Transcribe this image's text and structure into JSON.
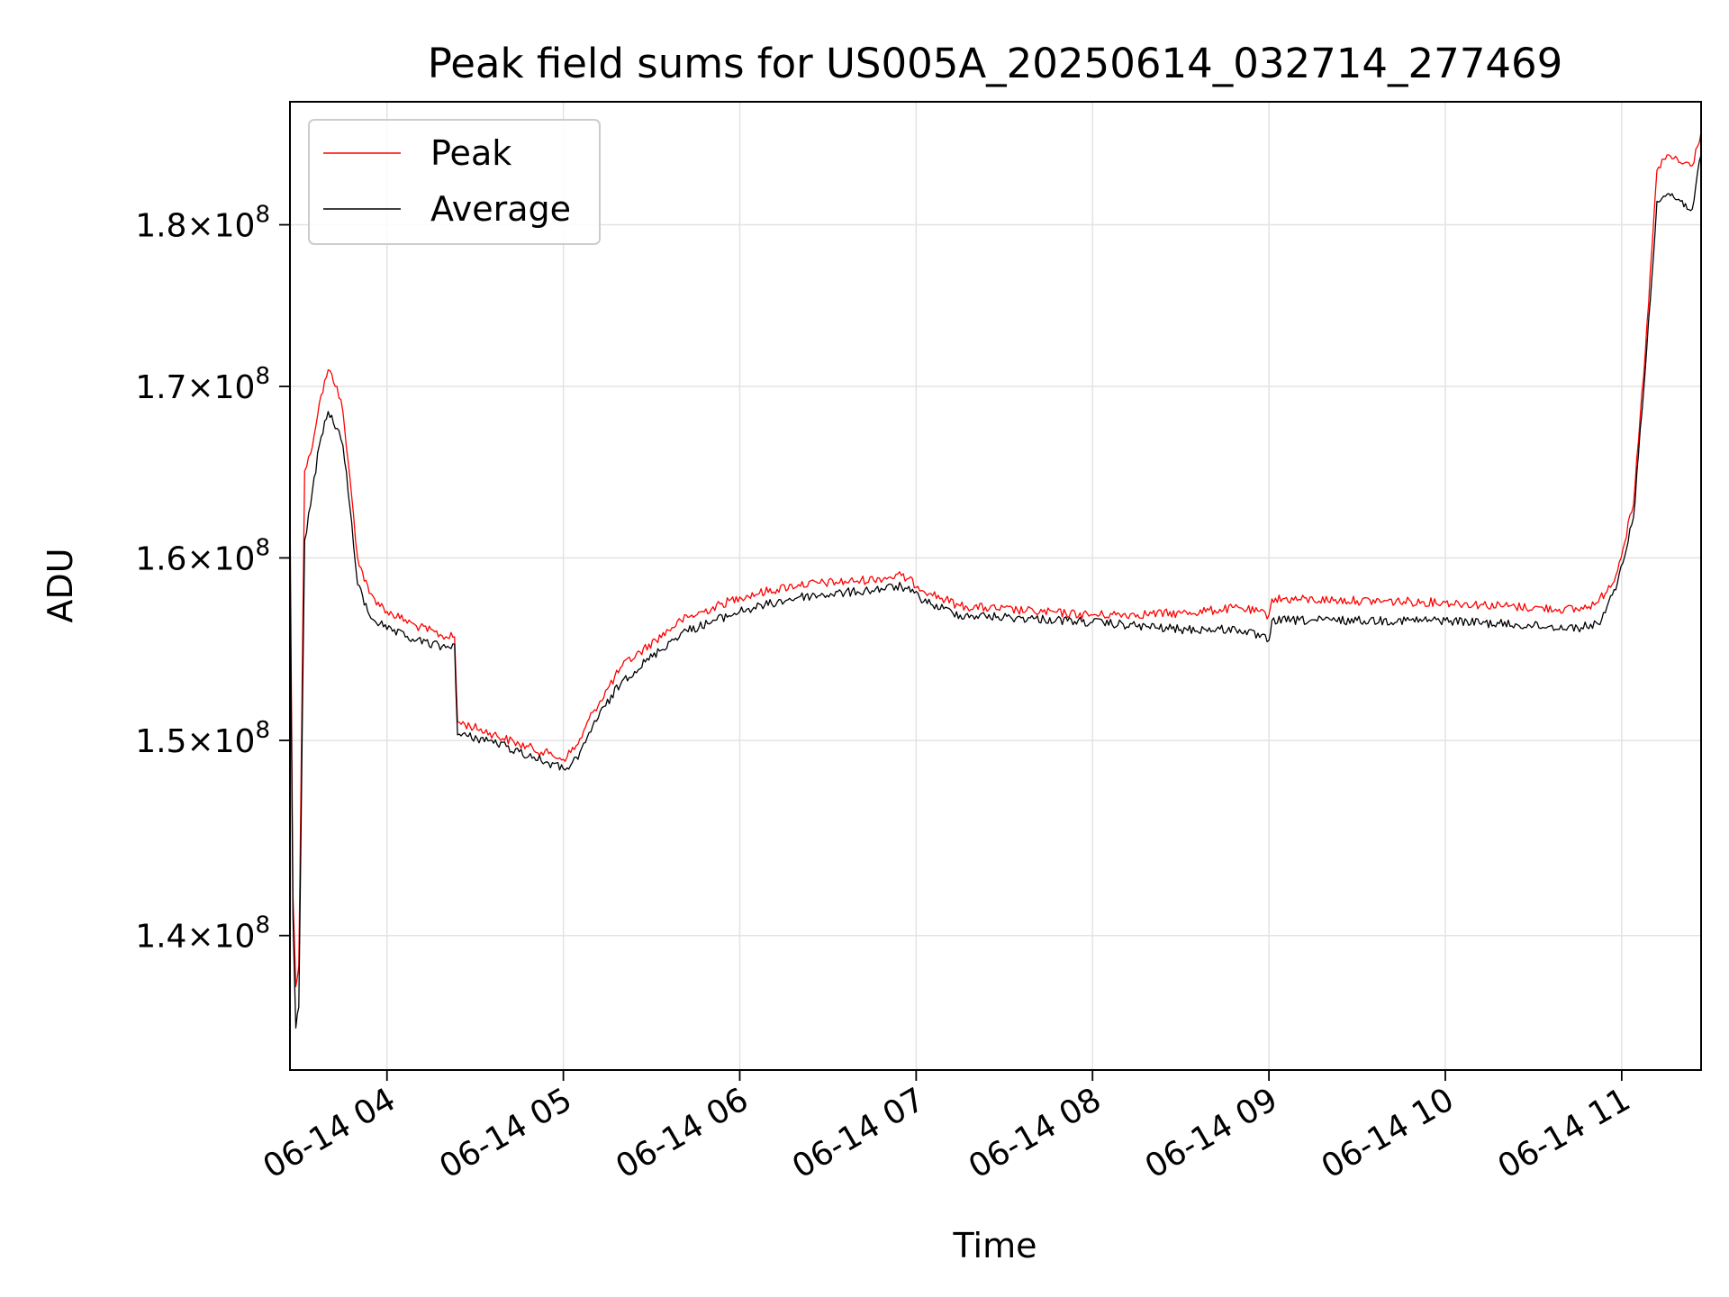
{
  "chart_data": {
    "type": "line",
    "title": "Peak field sums for US005A_20250614_032714_277469",
    "xlabel": "Time",
    "ylabel": "ADU",
    "yscale": "log",
    "grid": true,
    "legend": "top-left",
    "xlim": [
      "06-14 03:27",
      "06-14 11:27"
    ],
    "ylim": [
      133500000,
      188000000
    ],
    "x_ticks": [
      {
        "value": "06-14 04:00",
        "label": "06-14 04"
      },
      {
        "value": "06-14 05:00",
        "label": "06-14 05"
      },
      {
        "value": "06-14 06:00",
        "label": "06-14 06"
      },
      {
        "value": "06-14 07:00",
        "label": "06-14 07"
      },
      {
        "value": "06-14 08:00",
        "label": "06-14 08"
      },
      {
        "value": "06-14 09:00",
        "label": "06-14 09"
      },
      {
        "value": "06-14 10:00",
        "label": "06-14 10"
      },
      {
        "value": "06-14 11:00",
        "label": "06-14 11"
      }
    ],
    "y_ticks": [
      {
        "value": 140000000,
        "mantissa": "1.4",
        "exponent": "8"
      },
      {
        "value": 150000000,
        "mantissa": "1.5",
        "exponent": "8"
      },
      {
        "value": 160000000,
        "mantissa": "1.6",
        "exponent": "8"
      },
      {
        "value": 170000000,
        "mantissa": "1.7",
        "exponent": "8"
      },
      {
        "value": 180000000,
        "mantissa": "1.8",
        "exponent": "8"
      }
    ],
    "series": [
      {
        "name": "Peak",
        "color": "#ff0000",
        "x": [
          "06-14 03:27",
          "06-14 03:28",
          "06-14 03:29",
          "06-14 03:30",
          "06-14 03:32",
          "06-14 03:34",
          "06-14 03:37",
          "06-14 03:40",
          "06-14 03:43",
          "06-14 03:45",
          "06-14 03:48",
          "06-14 03:50",
          "06-14 03:54",
          "06-14 04:00",
          "06-14 04:10",
          "06-14 04:20",
          "06-14 04:23",
          "06-14 04:24",
          "06-14 04:35",
          "06-14 04:45",
          "06-14 04:55",
          "06-14 05:00",
          "06-14 05:05",
          "06-14 05:10",
          "06-14 05:20",
          "06-14 05:40",
          "06-14 06:00",
          "06-14 06:20",
          "06-14 06:40",
          "06-14 06:55",
          "06-14 07:05",
          "06-14 07:15",
          "06-14 07:40",
          "06-14 08:00",
          "06-14 08:30",
          "06-14 08:50",
          "06-14 09:00",
          "06-14 09:01",
          "06-14 09:30",
          "06-14 10:00",
          "06-14 10:30",
          "06-14 10:45",
          "06-14 10:52",
          "06-14 10:58",
          "06-14 11:04",
          "06-14 11:08",
          "06-14 11:12",
          "06-14 11:16",
          "06-14 11:20",
          "06-14 11:24",
          "06-14 11:27"
        ],
        "y": [
          163500000,
          142000000,
          137500000,
          138500000,
          165000000,
          166000000,
          169000000,
          171000000,
          170000000,
          168500000,
          163500000,
          160000000,
          158000000,
          157000000,
          156200000,
          155600000,
          155600000,
          151000000,
          150400000,
          149800000,
          149300000,
          149000000,
          149800000,
          151500000,
          154000000,
          156500000,
          157800000,
          158500000,
          158700000,
          159000000,
          158000000,
          157300000,
          157000000,
          156800000,
          156900000,
          157200000,
          156800000,
          157700000,
          157600000,
          157500000,
          157200000,
          157100000,
          157500000,
          159000000,
          163000000,
          172000000,
          183500000,
          184500000,
          184000000,
          183800000,
          186000000
        ]
      },
      {
        "name": "Average",
        "color": "#000000",
        "x": [
          "06-14 03:27",
          "06-14 03:28",
          "06-14 03:29",
          "06-14 03:30",
          "06-14 03:32",
          "06-14 03:34",
          "06-14 03:37",
          "06-14 03:40",
          "06-14 03:43",
          "06-14 03:45",
          "06-14 03:48",
          "06-14 03:50",
          "06-14 03:54",
          "06-14 04:00",
          "06-14 04:10",
          "06-14 04:20",
          "06-14 04:23",
          "06-14 04:24",
          "06-14 04:35",
          "06-14 04:45",
          "06-14 04:55",
          "06-14 05:00",
          "06-14 05:05",
          "06-14 05:10",
          "06-14 05:20",
          "06-14 05:40",
          "06-14 06:00",
          "06-14 06:20",
          "06-14 06:40",
          "06-14 06:55",
          "06-14 07:05",
          "06-14 07:15",
          "06-14 07:40",
          "06-14 08:00",
          "06-14 08:30",
          "06-14 08:50",
          "06-14 09:00",
          "06-14 09:01",
          "06-14 09:30",
          "06-14 10:00",
          "06-14 10:30",
          "06-14 10:45",
          "06-14 10:52",
          "06-14 10:58",
          "06-14 11:04",
          "06-14 11:08",
          "06-14 11:12",
          "06-14 11:16",
          "06-14 11:20",
          "06-14 11:24",
          "06-14 11:27"
        ],
        "y": [
          161000000,
          141000000,
          135500000,
          136500000,
          161000000,
          163000000,
          166500000,
          168500000,
          167500000,
          166500000,
          162000000,
          158500000,
          156800000,
          156000000,
          155400000,
          155000000,
          155200000,
          150300000,
          150000000,
          149400000,
          148800000,
          148500000,
          149000000,
          150800000,
          153200000,
          155800000,
          157000000,
          157800000,
          158100000,
          158400000,
          157400000,
          156800000,
          156600000,
          156400000,
          156000000,
          156000000,
          155400000,
          156500000,
          156500000,
          156500000,
          156200000,
          156100000,
          156300000,
          158200000,
          162300000,
          171000000,
          181500000,
          182000000,
          181500000,
          181000000,
          184500000
        ]
      }
    ]
  }
}
